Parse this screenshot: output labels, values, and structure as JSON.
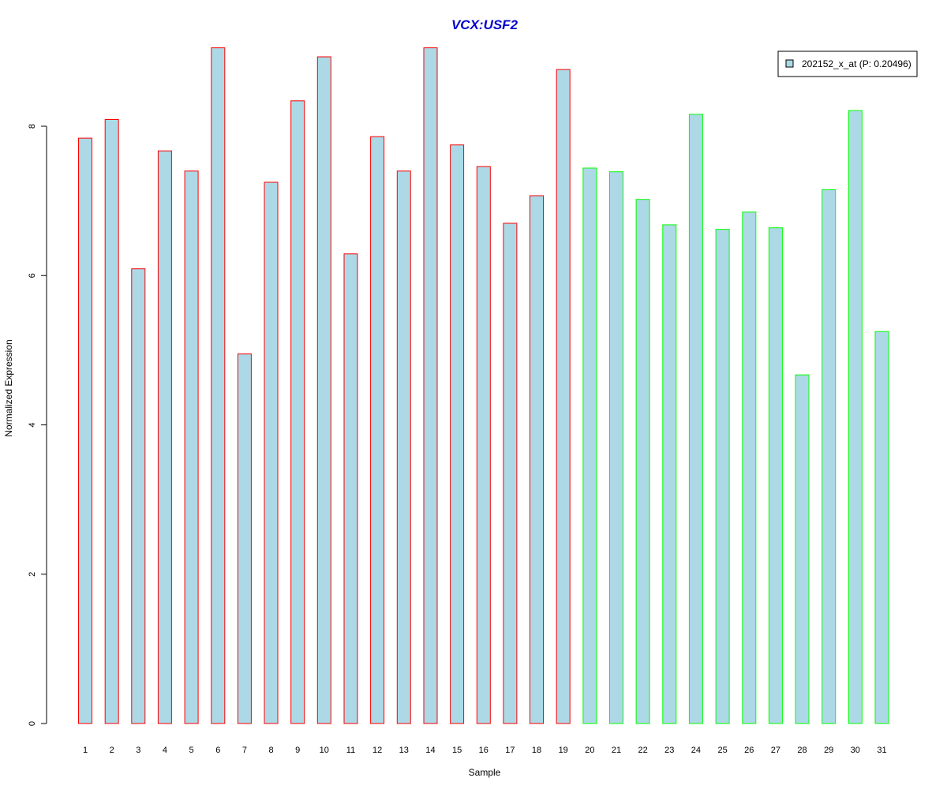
{
  "chart_data": {
    "type": "bar",
    "title": "VCX:USF2",
    "xlabel": "Sample",
    "ylabel": "Normalized Expression",
    "ylim": [
      0,
      9.05
    ],
    "yticks": [
      "0",
      "2",
      "4",
      "6",
      "8"
    ],
    "categories": [
      "1",
      "2",
      "3",
      "4",
      "5",
      "6",
      "7",
      "8",
      "9",
      "10",
      "11",
      "12",
      "13",
      "14",
      "15",
      "16",
      "17",
      "18",
      "19",
      "20",
      "21",
      "22",
      "23",
      "24",
      "25",
      "26",
      "27",
      "28",
      "29",
      "30",
      "31"
    ],
    "series": [
      {
        "name": "202152_x_at (P: 0.20496)",
        "values": [
          7.84,
          8.09,
          6.09,
          7.67,
          7.4,
          9.05,
          4.95,
          7.25,
          8.34,
          8.93,
          6.29,
          7.86,
          7.4,
          9.05,
          7.75,
          7.46,
          6.7,
          7.07,
          8.76,
          7.44,
          7.39,
          7.02,
          6.68,
          8.16,
          6.62,
          6.85,
          6.64,
          4.67,
          7.15,
          8.21,
          5.25
        ]
      }
    ],
    "bar_fill": "#add8e6",
    "group_colors": {
      "group1": "#ff0000",
      "group2": "#00ff00"
    },
    "group1_count": 19,
    "title_color": "#0000cd",
    "grid": false,
    "legend_position": "top-right"
  }
}
